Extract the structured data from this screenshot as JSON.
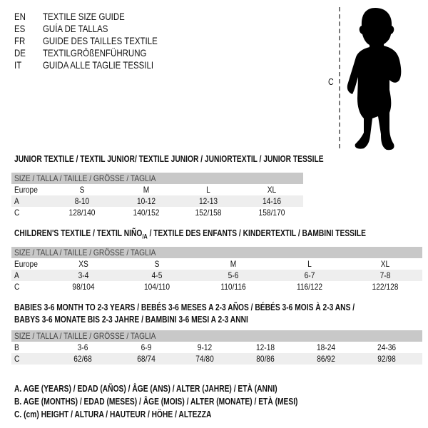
{
  "title_block": [
    {
      "code": "EN",
      "text": "TEXTILE SIZE GUIDE"
    },
    {
      "code": "ES",
      "text": "GUÍA DE TALLAS"
    },
    {
      "code": "FR",
      "text": "GUIDE DES TAILLES TEXTILE"
    },
    {
      "code": "DE",
      "text": "TEXTILGRÖßENFÜHRUNG"
    },
    {
      "code": "IT",
      "text": "GUIDA ALLE TAGLIE TESSILI"
    }
  ],
  "figure": {
    "measure_label": "C",
    "icon": "baby-silhouette"
  },
  "junior": {
    "title": "JUNIOR TEXTILE / TEXTIL JUNIOR/ TEXTILE JUNIOR / JUNIORTEXTIL / JUNIOR TESSILE",
    "header": "SIZE / TALLA / TAILLE / GRÖSSE / TAGLIA",
    "rows": [
      {
        "label": "Europe",
        "values": [
          "S",
          "M",
          "L",
          "XL"
        ]
      },
      {
        "label": "A",
        "values": [
          "8-10",
          "10-12",
          "12-13",
          "14-16"
        ]
      },
      {
        "label": "C",
        "values": [
          "128/140",
          "140/152",
          "152/158",
          "158/170"
        ]
      }
    ]
  },
  "children": {
    "title_main": "CHILDREN'S TEXTILE / TEXTIL NIÑO",
    "title_sub": "/A",
    "title_rest": " / TEXTILE DES ENFANTS / KINDERTEXTIL / BAMBINI TESSILE",
    "header": "SIZE / TALLA / TAILLE / GRÖSSE / TAGLIA",
    "rows": [
      {
        "label": "Europe",
        "values": [
          "XS",
          "S",
          "M",
          "L",
          "XL"
        ]
      },
      {
        "label": "A",
        "values": [
          "3-4",
          "4-5",
          "5-6",
          "6-7",
          "7-8"
        ]
      },
      {
        "label": "C",
        "values": [
          "98/104",
          "104/110",
          "110/116",
          "116/122",
          "122/128"
        ]
      }
    ]
  },
  "babies": {
    "title_line1": "BABIES 3-6 MONTH TO 2-3 YEARS / BEBÉS 3-6 MESES A 2-3 AÑOS / BÉBÉS 3-6 MOIS À 2-3 ANS /",
    "title_line2": "BABYS 3-6 MONATE BIS 2-3 JAHRE / BAMBINI 3-6 MESI A 2-3 ANNI",
    "header": "SIZE / TALLA / TAILLE / GRÖSSE / TAGLIA",
    "rows": [
      {
        "label": "B",
        "values": [
          "3-6",
          "6-9",
          "9-12",
          "12-18",
          "18-24",
          "24-36"
        ]
      },
      {
        "label": "C",
        "values": [
          "62/68",
          "68/74",
          "74/80",
          "80/86",
          "86/92",
          "92/98"
        ]
      }
    ]
  },
  "legend": [
    "A. AGE (YEARS) / EDAD (AÑOS) / ÂGE (ANS) / ALTER (JAHRE) / ETÀ (ANNI)",
    "B. AGE (MONTHS) / EDAD (MESES) / ÂGE (MOIS) / ALTER (MONATE) / ETÀ (MESI)",
    "C. (cm) HEIGHT / ALTURA / HAUTEUR / HÖHE / ALTEZZA"
  ]
}
